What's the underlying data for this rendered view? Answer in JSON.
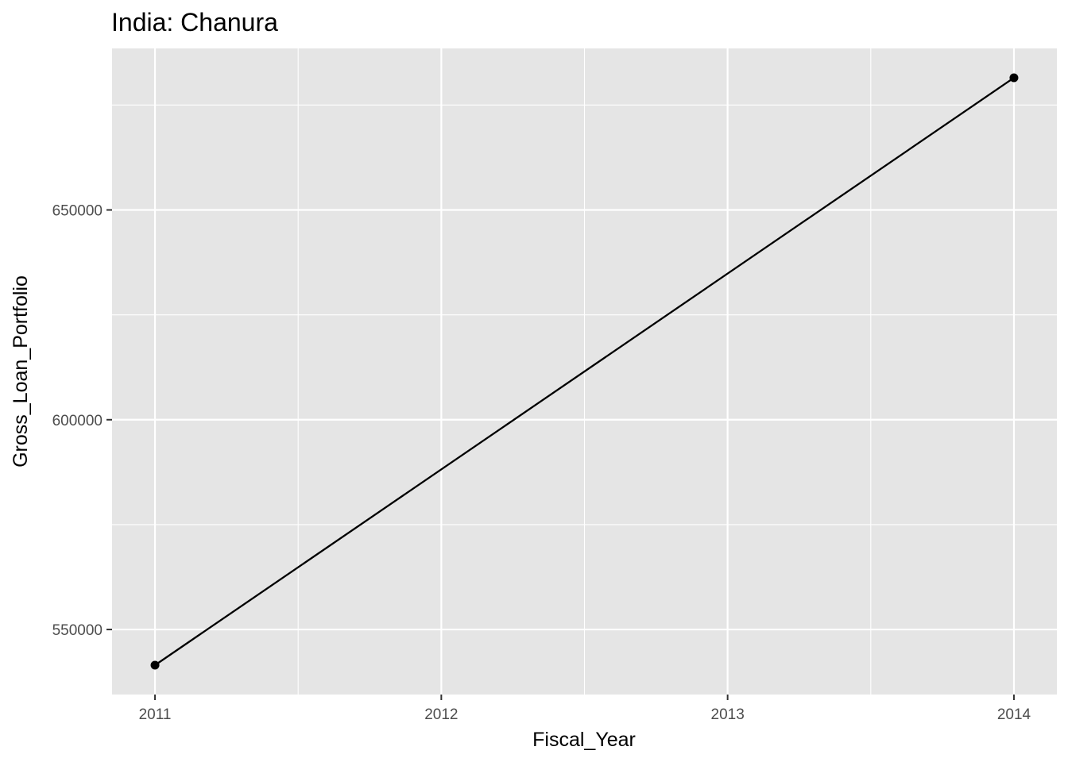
{
  "chart_data": {
    "type": "line",
    "title": "India:  Chanura",
    "xlabel": "Fiscal_Year",
    "ylabel": "Gross_Loan_Portfolio",
    "x": [
      2011,
      2014
    ],
    "y": [
      541500,
      681500
    ],
    "xticks": [
      2011,
      2012,
      2013,
      2014
    ],
    "xtick_labels": [
      "2011",
      "2012",
      "2013",
      "2014"
    ],
    "yticks": [
      550000,
      600000,
      650000
    ],
    "ytick_labels": [
      "550000",
      "600000",
      "650000"
    ],
    "xlim": [
      2010.85,
      2014.15
    ],
    "ylim": [
      534500,
      688500
    ],
    "grid": true,
    "legend": "none",
    "colors": {
      "panel_background": "#e5e5e5",
      "grid_line": "#ffffff",
      "series_line": "#000000",
      "tick_mark": "#333333"
    }
  }
}
